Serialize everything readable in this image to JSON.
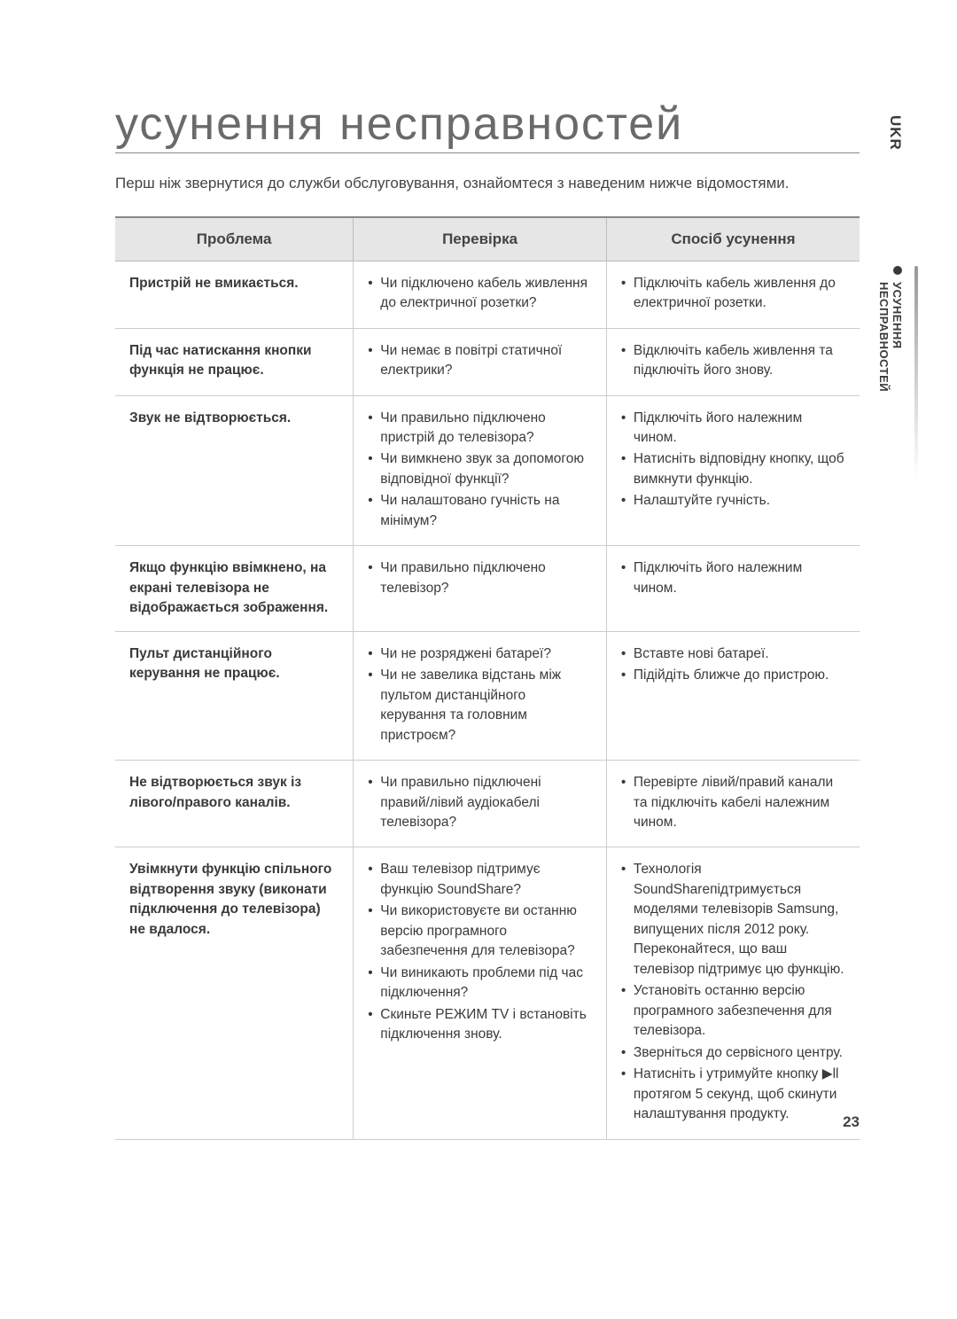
{
  "side": {
    "lang": "UKR",
    "section": "УСУНЕННЯ НЕСПРАВНОСТЕЙ"
  },
  "title": "усунення несправностей",
  "intro": "Перш ніж звернутися до служби обслуговування, ознайомтеся з наведеним нижче відомостями.",
  "headers": {
    "problem": "Проблема",
    "check": "Перевірка",
    "fix": "Спосіб усунення"
  },
  "rows": [
    {
      "problem": "Пристрій не вмикається.",
      "check": [
        "Чи підключено кабель живлення до електричної розетки?"
      ],
      "fix": [
        "Підключіть кабель живлення до електричної розетки."
      ]
    },
    {
      "problem": "Під час натискання кнопки функція не працює.",
      "check": [
        "Чи немає в повітрі статичної електрики?"
      ],
      "fix": [
        "Відключіть кабель живлення та підключіть його знову."
      ]
    },
    {
      "problem": "Звук не відтворюється.",
      "check": [
        "Чи правильно підключено пристрій до телевізора?",
        "Чи вимкнено звук за допомогою відповідної функції?",
        "Чи налаштовано гучність на мінімум?"
      ],
      "fix": [
        "Підключіть його належним чином.",
        "Натисніть відповідну кнопку, щоб вимкнути функцію.",
        "Налаштуйте гучність."
      ]
    },
    {
      "problem": "Якщо функцію ввімкнено, на екрані телевізора не відображається зображення.",
      "check": [
        "Чи правильно підключено телевізор?"
      ],
      "fix": [
        "Підключіть його належним чином."
      ]
    },
    {
      "problem": "Пульт дистанційного керування не працює.",
      "check": [
        "Чи не розряджені батареї?",
        "Чи не завелика відстань між пультом дистанційного керування та головним пристроєм?"
      ],
      "fix": [
        "Вставте нові батареї.",
        "Підійдіть ближче до пристрою."
      ]
    },
    {
      "problem": "Не відтворюється звук із лівого/правого каналів.",
      "check": [
        "Чи правильно підключені правий/лівий аудіокабелі телевізора?"
      ],
      "fix": [
        "Перевірте лівий/правий канали та підключіть кабелі належним чином."
      ]
    },
    {
      "problem": "Увімкнути функцію спільного відтворення звуку (виконати підключення до телевізора) не вдалося.",
      "check": [
        "Ваш телевізор підтримує функцію SoundShare?",
        "Чи використовуєте ви останню версію програмного забезпечення для телевізора?",
        "Чи виникають проблеми під час підключення?",
        "Скиньте РЕЖИМ TV і встановіть підключення знову."
      ],
      "fix": [
        "Технологія SoundShareпідтримується моделями телевізорів Samsung, випущених після 2012 року. Переконайтеся, що ваш телевізор підтримує цю функцію.",
        "Установіть останню версію програмного забезпечення для телевізора.",
        "Зверніться до сервісного центру.",
        "Натисніть і утримуйте кнопку ▶ll протягом 5 секунд, щоб скинути налаштування продукту."
      ]
    }
  ],
  "pageNumber": "23"
}
